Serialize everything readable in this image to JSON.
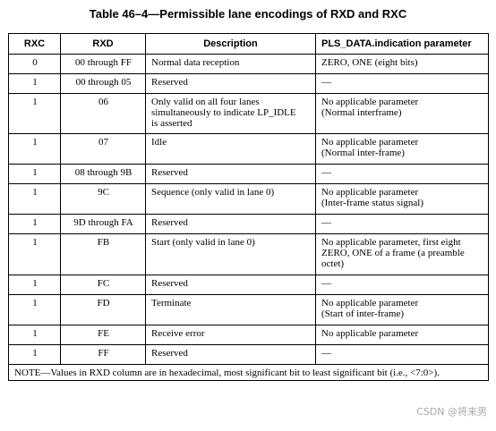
{
  "title": "Table 46–4—Permissible lane encodings of RXD and RXC",
  "headers": [
    "RXC",
    "RXD",
    "Description",
    "PLS_DATA.indication parameter"
  ],
  "rows": [
    {
      "rxc": "0",
      "rxd": "00 through FF",
      "desc": "Normal data reception",
      "param": "ZERO, ONE (eight bits)"
    },
    {
      "rxc": "1",
      "rxd": "00 through 05",
      "desc": "Reserved",
      "param": "—"
    },
    {
      "rxc": "1",
      "rxd": "06",
      "desc": "Only valid on all four lanes\nsimultaneously to indicate LP_IDLE\nis asserted",
      "param": "No applicable parameter\n(Normal interframe)"
    },
    {
      "rxc": "1",
      "rxd": "07",
      "desc": "Idle",
      "param": "No applicable parameter\n(Normal inter-frame)"
    },
    {
      "rxc": "1",
      "rxd": "08 through 9B",
      "desc": "Reserved",
      "param": "—"
    },
    {
      "rxc": "1",
      "rxd": "9C",
      "desc": "Sequence (only valid in lane 0)",
      "param": "No applicable parameter\n(Inter-frame status signal)"
    },
    {
      "rxc": "1",
      "rxd": "9D through FA",
      "desc": "Reserved",
      "param": "—"
    },
    {
      "rxc": "1",
      "rxd": "FB",
      "desc": "Start (only valid in lane 0)",
      "param": "No applicable parameter, first eight\nZERO, ONE of a frame (a preamble\noctet)"
    },
    {
      "rxc": "1",
      "rxd": "FC",
      "desc": "Reserved",
      "param": "—"
    },
    {
      "rxc": "1",
      "rxd": "FD",
      "desc": "Terminate",
      "param": "No applicable parameter\n(Start of inter-frame)"
    },
    {
      "rxc": "1",
      "rxd": "FE",
      "desc": "Receive error",
      "param": "No applicable parameter"
    },
    {
      "rxc": "1",
      "rxd": "FF",
      "desc": "Reserved",
      "param": "—"
    }
  ],
  "note": "NOTE—Values in RXD column are in hexadecimal, most significant bit to least significant bit (i.e., <7:0>).",
  "watermark": "CSDN @将来男"
}
